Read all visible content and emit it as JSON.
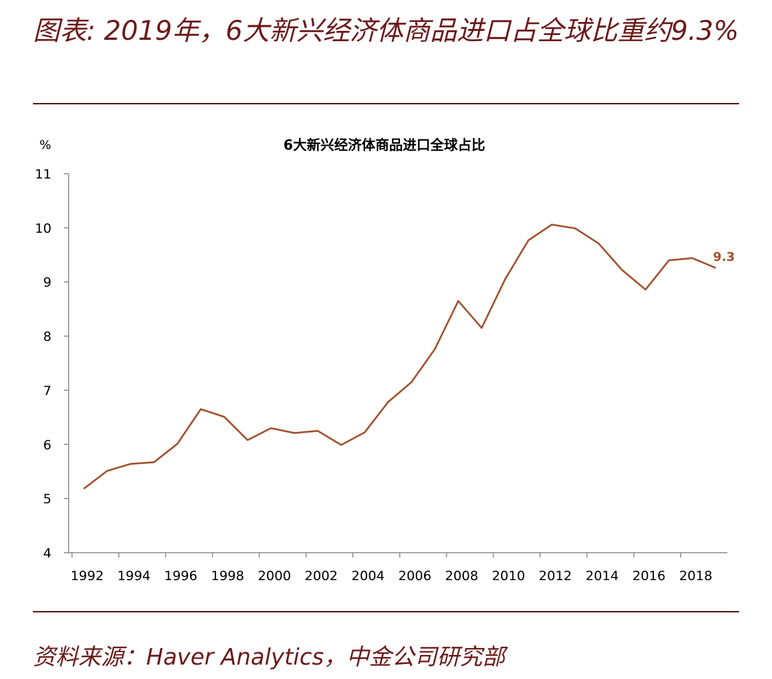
{
  "figure": {
    "title": "图表: 2019年，6大新兴经济体商品进口占全球比重约9.3%",
    "source": "资料来源：Haver Analytics，中金公司研究部"
  },
  "chart_data": {
    "type": "line",
    "title": "6大新兴经济体商品进口全球占比",
    "ylabel": "%",
    "xlabel": "",
    "ylim": [
      4,
      11
    ],
    "yticks": [
      4,
      5,
      6,
      7,
      8,
      9,
      10,
      11
    ],
    "xlim": [
      1992,
      2019
    ],
    "xticks": [
      "1992",
      "1994",
      "1996",
      "1998",
      "2000",
      "2002",
      "2004",
      "2006",
      "2008",
      "2010",
      "2012",
      "2014",
      "2016",
      "2018"
    ],
    "grid": false,
    "legend": "none",
    "x": [
      1992,
      1993,
      1994,
      1995,
      1996,
      1997,
      1998,
      1999,
      2000,
      2001,
      2002,
      2003,
      2004,
      2005,
      2006,
      2007,
      2008,
      2009,
      2010,
      2011,
      2012,
      2013,
      2014,
      2015,
      2016,
      2017,
      2018,
      2019
    ],
    "series": [
      {
        "values": [
          5.18,
          5.51,
          5.64,
          5.67,
          6.01,
          6.65,
          6.51,
          6.08,
          6.3,
          6.21,
          6.25,
          5.99,
          6.22,
          6.78,
          7.15,
          7.76,
          8.65,
          8.15,
          9.05,
          9.77,
          10.06,
          9.99,
          9.71,
          9.22,
          8.86,
          9.4,
          9.44,
          9.26
        ],
        "color": "#a0522d"
      }
    ],
    "annotations": [
      {
        "x": 2019,
        "y": 9.26,
        "label": "9.3",
        "color": "#a0522d"
      }
    ]
  }
}
